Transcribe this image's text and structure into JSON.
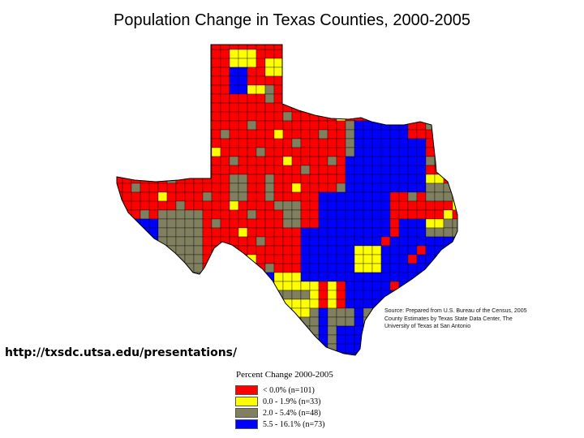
{
  "title": "Population Change in Texas Counties, 2000-2005",
  "source_note": "Source: Prepared from U.S. Bureau of the Census, 2005 County Estimates by Texas State Data Center, The University of Texas at San Antonio",
  "url": "http://txsdc.utsa.edu/presentations/",
  "legend": {
    "title": "Percent Change 2000-2005",
    "items": [
      {
        "label": "< 0.0% (n=101)",
        "color": "#ff0000"
      },
      {
        "label": "0.0 - 1.9% (n=33)",
        "color": "#ffff00"
      },
      {
        "label": "2.0 - 5.4% (n=48)",
        "color": "#808060"
      },
      {
        "label": "5.5 - 16.1% (n=73)",
        "color": "#0000ff"
      }
    ]
  },
  "colors": {
    "decline": "#ff0000",
    "low": "#ffff00",
    "moderate": "#808060",
    "high": "#0000ff",
    "border": "#000000"
  }
}
